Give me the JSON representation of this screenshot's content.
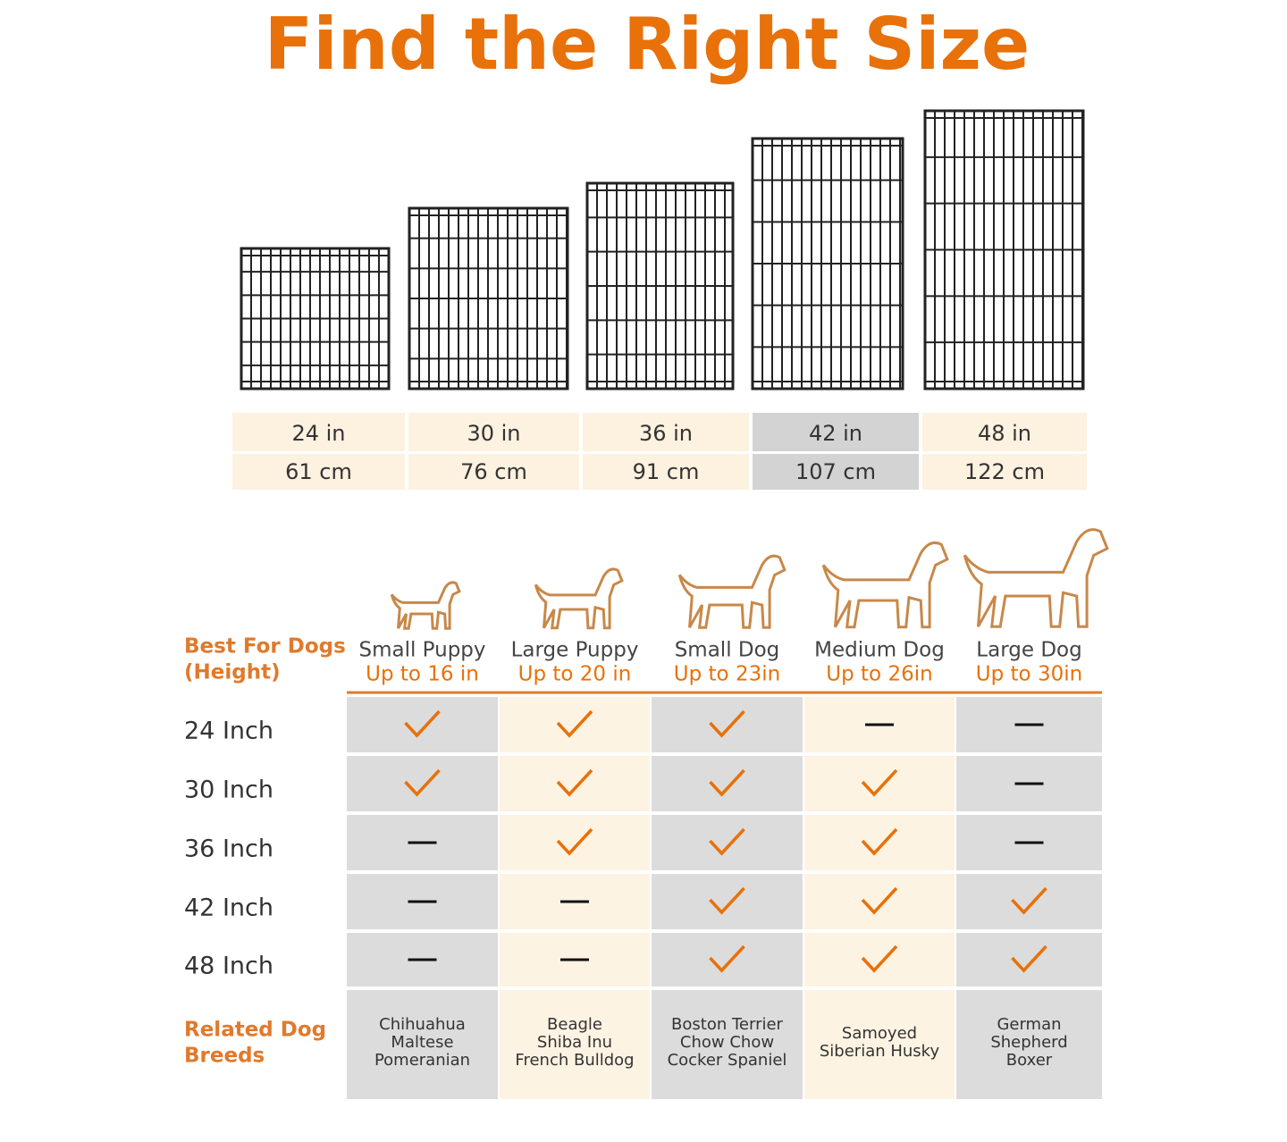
{
  "title": "Find the Right Size",
  "sizes": [
    {
      "inches": "24 in",
      "cm": "61 cm",
      "highlighted": false
    },
    {
      "inches": "30 in",
      "cm": "76 cm",
      "highlighted": false
    },
    {
      "inches": "36 in",
      "cm": "91 cm",
      "highlighted": false
    },
    {
      "inches": "42 in",
      "cm": "107 cm",
      "highlighted": true
    },
    {
      "inches": "48 in",
      "cm": "122 cm",
      "highlighted": false
    }
  ],
  "best_for_label": [
    "Best For Dogs",
    "(Height)"
  ],
  "dogs": [
    {
      "name": "Small Puppy",
      "height": "Up to 16 in"
    },
    {
      "name": "Large Puppy",
      "height": "Up to 20 in"
    },
    {
      "name": "Small Dog",
      "height": "Up to 23in"
    },
    {
      "name": "Medium Dog",
      "height": "Up to 26in"
    },
    {
      "name": "Large Dog",
      "height": "Up to 30in"
    }
  ],
  "rows": [
    {
      "label": "24 Inch",
      "fits": [
        true,
        true,
        true,
        false,
        false
      ]
    },
    {
      "label": "30 Inch",
      "fits": [
        true,
        true,
        true,
        true,
        false
      ]
    },
    {
      "label": "36 Inch",
      "fits": [
        false,
        true,
        true,
        true,
        false
      ]
    },
    {
      "label": "42 Inch",
      "fits": [
        false,
        false,
        true,
        true,
        true
      ]
    },
    {
      "label": "48 Inch",
      "fits": [
        false,
        false,
        true,
        true,
        true
      ]
    }
  ],
  "breeds_label": [
    "Related Dog",
    "Breeds"
  ],
  "breeds": [
    [
      "Chihuahua",
      "Maltese",
      "Pomeranian"
    ],
    [
      "Beagle",
      "Shiba Inu",
      "French Bulldog"
    ],
    [
      "Boston Terrier",
      "Chow Chow",
      "Cocker Spaniel"
    ],
    [
      "Samoyed",
      "Siberian Husky"
    ],
    [
      "German",
      "Shepherd",
      "Boxer"
    ]
  ]
}
